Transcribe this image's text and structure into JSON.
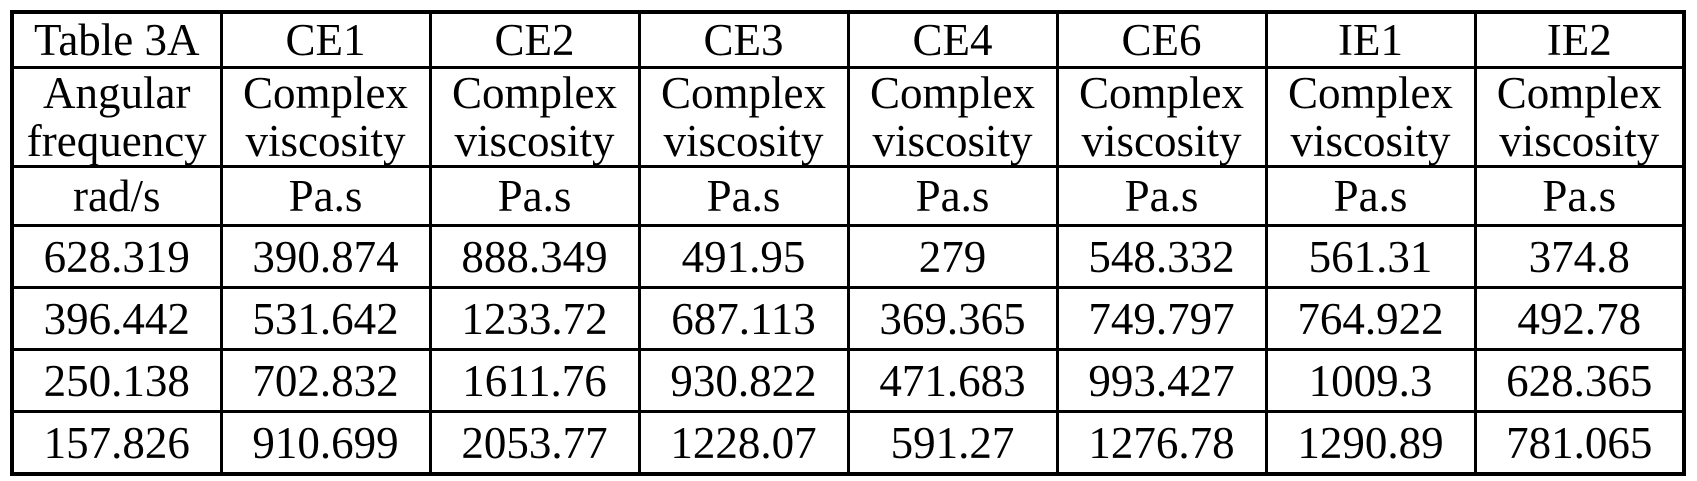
{
  "table": {
    "title": "Table 3A",
    "columns": [
      "Table 3A",
      "CE1",
      "CE2",
      "CE3",
      "CE4",
      "CE6",
      "IE1",
      "IE2"
    ],
    "quantity_row": [
      "Angular\nfrequency",
      "Complex\nviscosity",
      "Complex\nviscosity",
      "Complex\nviscosity",
      "Complex\nviscosity",
      "Complex\nviscosity",
      "Complex\nviscosity",
      "Complex\nviscosity"
    ],
    "units_row": [
      "rad/s",
      "Pa.s",
      "Pa.s",
      "Pa.s",
      "Pa.s",
      "Pa.s",
      "Pa.s",
      "Pa.s"
    ],
    "data_rows": [
      [
        "628.319",
        "390.874",
        "888.349",
        "491.95",
        "279",
        "548.332",
        "561.31",
        "374.8"
      ],
      [
        "396.442",
        "531.642",
        "1233.72",
        "687.113",
        "369.365",
        "749.797",
        "764.922",
        "492.78"
      ],
      [
        "250.138",
        "702.832",
        "1611.76",
        "930.822",
        "471.683",
        "993.427",
        "1009.3",
        "628.365"
      ],
      [
        "157.826",
        "910.699",
        "2053.77",
        "1228.07",
        "591.27",
        "1276.78",
        "1290.89",
        "781.065"
      ]
    ],
    "colors": {
      "border": "#000000",
      "text": "#000000",
      "background": "#ffffff"
    }
  }
}
